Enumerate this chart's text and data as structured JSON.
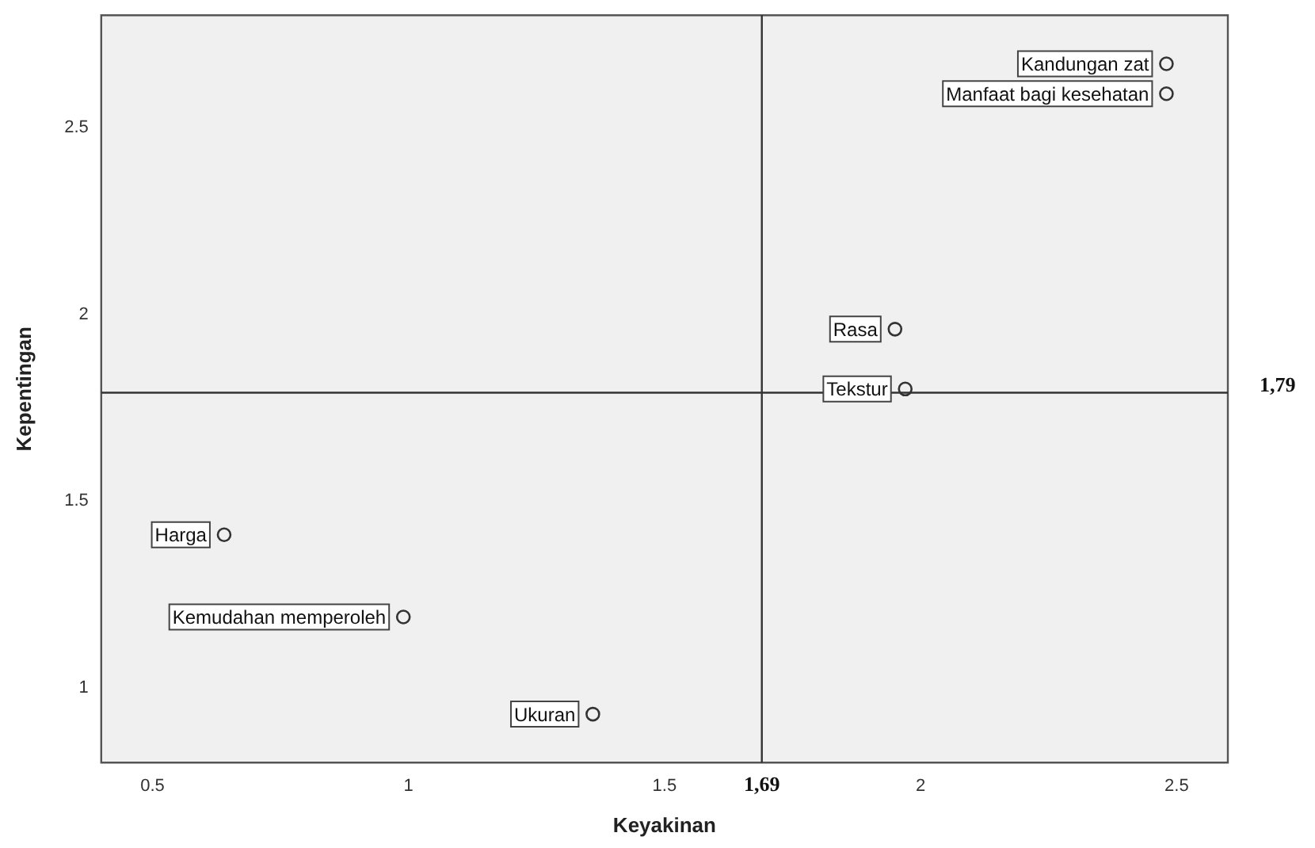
{
  "chart_data": {
    "type": "scatter",
    "xlabel": "Keyakinan",
    "ylabel": "Kepentingan",
    "x": [
      2.48,
      2.48,
      1.95,
      1.97,
      0.64,
      0.99,
      1.36
    ],
    "series": [
      {
        "color": "#333333",
        "values": [
          2.67,
          2.59,
          1.96,
          1.8,
          1.41,
          1.19,
          0.93
        ]
      }
    ],
    "xlim": [
      0.4,
      2.6
    ],
    "xticks": [
      0.5,
      1,
      1.5,
      2,
      2.5
    ],
    "ylim": [
      0.8,
      2.8
    ],
    "yticks": [
      1,
      1.5,
      2,
      2.5
    ],
    "grid": false,
    "legend": false,
    "marker": "circle",
    "ref_lines": [
      {
        "axis": "x",
        "value": 1.69,
        "label": "1,69",
        "color": "#333333"
      },
      {
        "axis": "y",
        "value": 1.79,
        "label": "1,79",
        "color": "#333333"
      }
    ],
    "annotations": [
      {
        "text": "Kandungan zat",
        "x": 2.48,
        "y": 2.67
      },
      {
        "text": "Manfaat bagi kesehatan",
        "x": 2.48,
        "y": 2.59
      },
      {
        "text": "Rasa",
        "x": 1.95,
        "y": 1.96
      },
      {
        "text": "Tekstur",
        "x": 1.97,
        "y": 1.8
      },
      {
        "text": "Harga",
        "x": 0.64,
        "y": 1.41
      },
      {
        "text": "Kemudahan memperoleh",
        "x": 0.99,
        "y": 1.19
      },
      {
        "text": "Ukuran",
        "x": 1.36,
        "y": 0.93
      }
    ]
  }
}
